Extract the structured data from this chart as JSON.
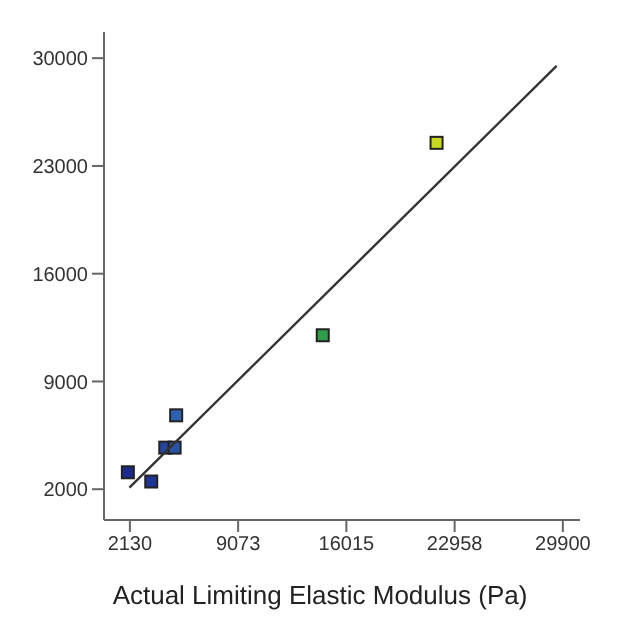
{
  "chart_data": {
    "type": "scatter",
    "xlabel": "Actual Limiting Elastic Modulus (Pa)",
    "xlim": [
      470,
      31000
    ],
    "xticks": [
      2130,
      9073,
      16015,
      22958,
      29900
    ],
    "ylim": [
      0,
      31700
    ],
    "yticks": [
      2000,
      9000,
      16000,
      23000,
      30000
    ],
    "series": [
      {
        "marker": "square",
        "x": [
          2000,
          3500,
          4400,
          5000,
          5100,
          14500,
          21800
        ],
        "values": [
          3100,
          2500,
          4700,
          4700,
          6800,
          12000,
          24500
        ],
        "colors": [
          "#1c2a8c",
          "#1f3596",
          "#25459e",
          "#2a52a6",
          "#2e62b0",
          "#2e9e48",
          "#c8d820"
        ]
      },
      {
        "type": "line",
        "x": [
          2100,
          29500
        ],
        "values": [
          2100,
          29500
        ],
        "color": "#333333"
      }
    ]
  }
}
